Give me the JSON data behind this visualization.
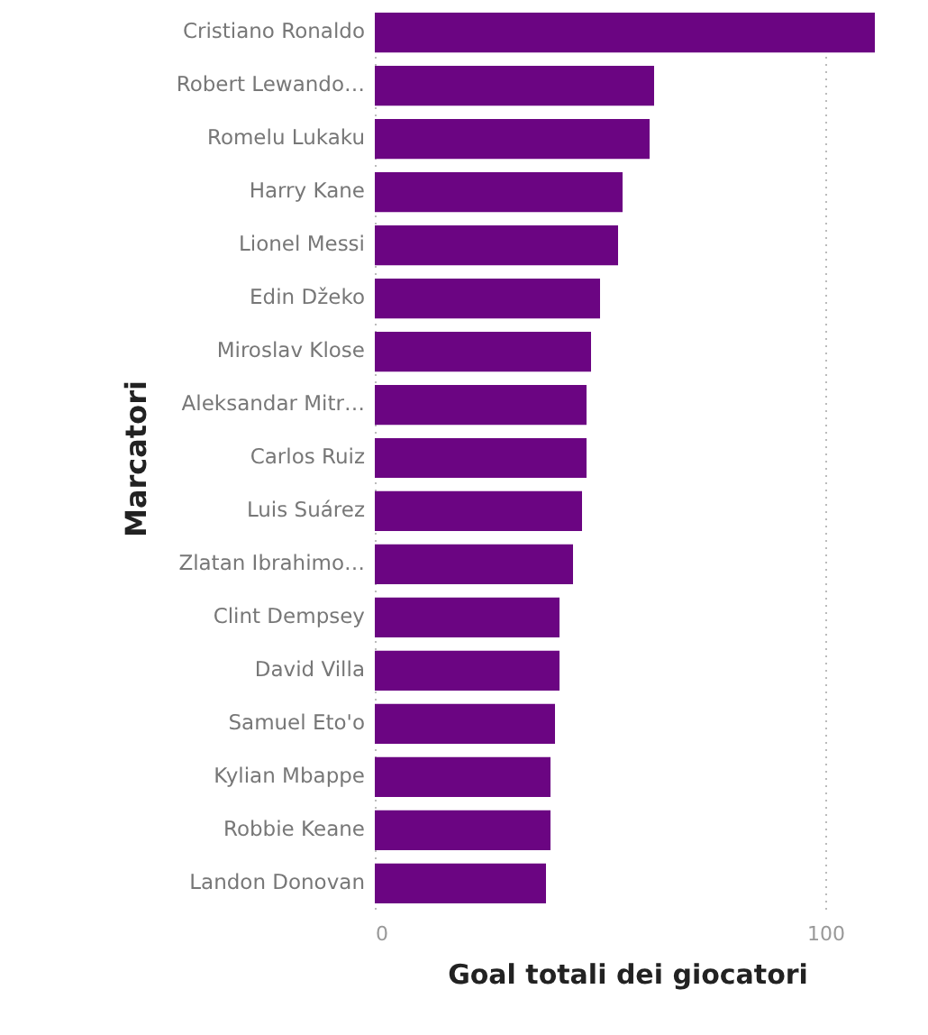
{
  "chart_data": {
    "type": "bar",
    "orientation": "horizontal",
    "xlabel": "Goal totali dei giocatori",
    "ylabel": "Marcatori",
    "categories": [
      "Cristiano Ronaldo",
      "Robert Lewando…",
      "Romelu Lukaku",
      "Harry Kane",
      "Lionel Messi",
      "Edin Džeko",
      "Miroslav Klose",
      "Aleksandar Mitr…",
      "Carlos Ruiz",
      "Luis Suárez",
      "Zlatan Ibrahimo…",
      "Clint Dempsey",
      "David Villa",
      "Samuel Eto'o",
      "Kylian Mbappe",
      "Robbie Keane",
      "Landon Donovan"
    ],
    "values": [
      111,
      62,
      61,
      55,
      54,
      50,
      48,
      47,
      47,
      46,
      44,
      41,
      41,
      40,
      39,
      39,
      38
    ],
    "color": "#6b0582",
    "xlim": [
      0,
      112
    ],
    "xticks": [
      0,
      100
    ],
    "grid": "x"
  }
}
